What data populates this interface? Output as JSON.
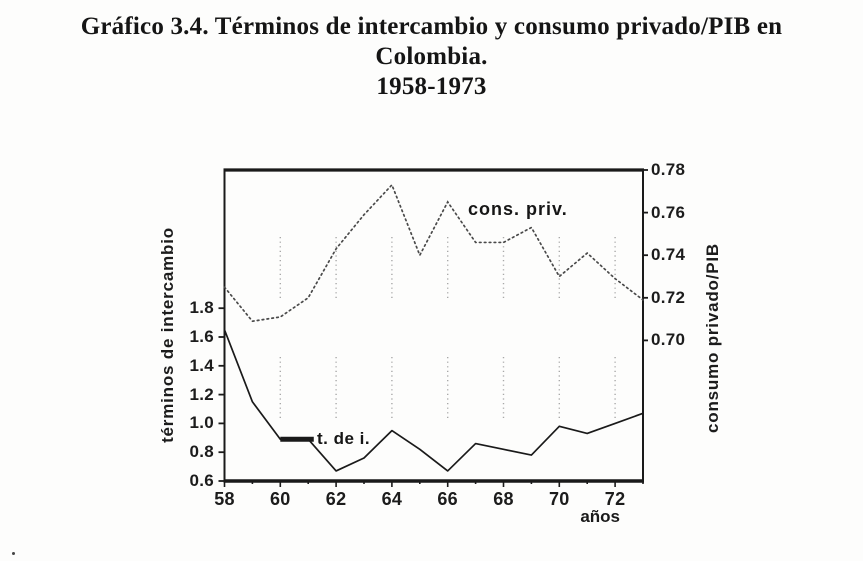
{
  "title": {
    "line1": "Gráfico 3.4. Términos de intercambio y consumo privado/PIB en",
    "line2": "Colombia.",
    "line3": "1958-1973"
  },
  "colors": {
    "ink": "#1a1a1a",
    "dotted_line": "#4a4a4a",
    "grid": "#a8a8a8"
  },
  "chart_data": {
    "type": "line",
    "title": "Gráfico 3.4. Términos de intercambio y consumo privado/PIB en Colombia. 1958-1973",
    "xlabel": "años",
    "x": [
      58,
      59,
      60,
      61,
      62,
      63,
      64,
      65,
      66,
      67,
      68,
      69,
      70,
      71,
      72,
      73
    ],
    "x_tick_values": [
      58,
      60,
      62,
      64,
      66,
      68,
      70,
      72
    ],
    "x_tick_labels": [
      "58",
      "60",
      "62",
      "64",
      "66",
      "68",
      "70",
      "72"
    ],
    "gridline_years": [
      60,
      62,
      64,
      66,
      68,
      70,
      72
    ],
    "grid": "partial-vertical-dotted",
    "legend_position": "inline-annotations",
    "left_axis": {
      "label": "términos de intercambio",
      "tick_values": [
        0.6,
        0.8,
        1.0,
        1.2,
        1.4,
        1.6,
        1.8
      ],
      "tick_labels": [
        "0.6",
        "0.8",
        "1.0",
        "1.2",
        "1.4",
        "1.6",
        "1.8"
      ],
      "range_shown": [
        0.6,
        2.76
      ]
    },
    "right_axis": {
      "label": "consumo privado/PIB",
      "tick_values": [
        0.7,
        0.72,
        0.74,
        0.76,
        0.78
      ],
      "tick_labels": [
        "0.70",
        "0.72",
        "0.74",
        "0.76",
        "0.78"
      ],
      "range_shown": [
        0.634,
        0.78
      ]
    },
    "series": [
      {
        "name": "t. de i.",
        "axis": "left",
        "style": "solid",
        "values": [
          1.65,
          1.15,
          0.89,
          0.89,
          0.67,
          0.76,
          0.95,
          0.82,
          0.67,
          0.86,
          0.82,
          0.78,
          0.98,
          0.93,
          1.0,
          1.07
        ]
      },
      {
        "name": "cons. priv.",
        "axis": "right",
        "style": "dotted",
        "values": [
          0.725,
          0.709,
          0.711,
          0.72,
          0.743,
          0.759,
          0.773,
          0.74,
          0.765,
          0.746,
          0.746,
          0.753,
          0.73,
          0.741,
          0.729,
          0.719
        ]
      }
    ]
  }
}
